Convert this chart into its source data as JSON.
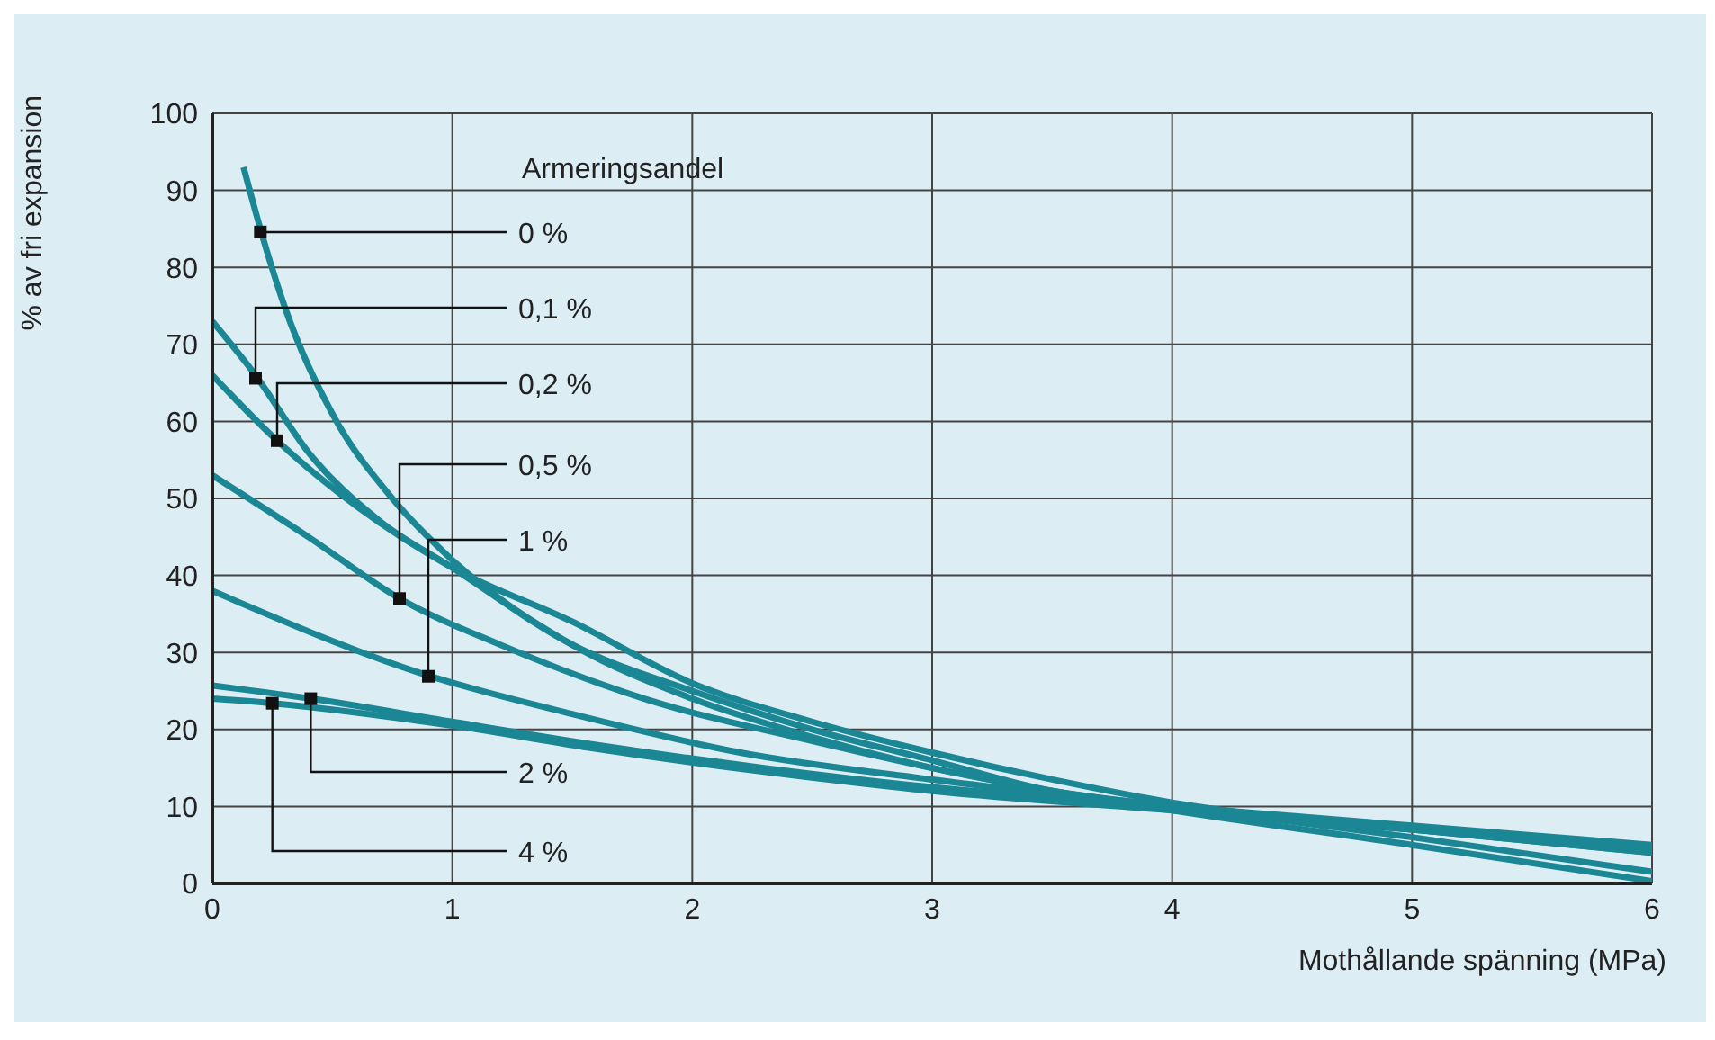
{
  "chart_data": {
    "type": "line",
    "xlabel": "Mothållande spänning (MPa)",
    "ylabel": "% av fri expansion",
    "legend_title": "Armeringsandel",
    "xlim": [
      0,
      6
    ],
    "xticks": [
      0,
      1,
      2,
      3,
      4,
      5,
      6
    ],
    "ylim": [
      0,
      100
    ],
    "yticks": [
      0,
      10,
      20,
      30,
      40,
      50,
      60,
      70,
      80,
      90,
      100
    ],
    "grid": true,
    "marker": "none",
    "line_style": "solid",
    "series": [
      {
        "color": "#1b8795",
        "x": [
          0.13,
          0.2,
          0.3,
          0.5,
          0.75,
          1,
          1.5,
          2,
          2.5,
          3,
          3.5,
          4,
          5,
          6
        ],
        "values": [
          93,
          85,
          75,
          61,
          50,
          42,
          31,
          24,
          19,
          15,
          12,
          9.5,
          5,
          0.3
        ]
      },
      {
        "color": "#1b8795",
        "x": [
          0,
          0.18,
          0.4,
          0.7,
          1,
          1.5,
          2,
          2.5,
          3,
          3.5,
          4,
          5,
          6
        ],
        "values": [
          73,
          66,
          56,
          47,
          41,
          31,
          25,
          20,
          16,
          12,
          10,
          6,
          1.5
        ]
      },
      {
        "color": "#1b8795",
        "x": [
          0,
          0.27,
          0.6,
          1,
          1.5,
          2,
          2.5,
          3,
          3.5,
          4,
          5,
          6
        ],
        "values": [
          66,
          57.5,
          49,
          41,
          34,
          26,
          21,
          17,
          13.5,
          10.5,
          7,
          4
        ]
      },
      {
        "color": "#1b8795",
        "x": [
          0,
          0.4,
          0.78,
          1.2,
          1.8,
          2.5,
          3,
          3.5,
          4,
          5,
          6
        ],
        "values": [
          53,
          45,
          37,
          31,
          24,
          18.5,
          15,
          12,
          10,
          7,
          4.5
        ]
      },
      {
        "color": "#1b8795",
        "x": [
          0,
          0.9,
          1.5,
          2.2,
          3,
          4,
          5,
          6
        ],
        "values": [
          38,
          27,
          22,
          17,
          13.5,
          10,
          7,
          4.5
        ]
      },
      {
        "color": "#1b8795",
        "x": [
          0,
          0.41,
          1,
          1.6,
          2.3,
          3,
          4,
          5,
          6
        ],
        "values": [
          25.7,
          24,
          21,
          18,
          15,
          12.5,
          10,
          7.5,
          5
        ]
      },
      {
        "color": "#1b8795",
        "x": [
          0,
          0.25,
          1,
          1.6,
          2.3,
          3,
          4,
          5,
          6
        ],
        "values": [
          24,
          23.4,
          20.5,
          17.5,
          14.5,
          12,
          9.5,
          7,
          4
        ]
      }
    ],
    "annotations": [
      {
        "text": "0 %",
        "x": 0.2,
        "y": 84.6
      },
      {
        "text": "0,1 %",
        "x": 0.18,
        "y": 65.6
      },
      {
        "text": "0,2 %",
        "x": 0.27,
        "y": 57.5
      },
      {
        "text": "0,5 %",
        "x": 0.78,
        "y": 37
      },
      {
        "text": "1 %",
        "x": 0.9,
        "y": 26.9
      },
      {
        "text": "2 %",
        "x": 0.41,
        "y": 24
      },
      {
        "text": "4 %",
        "x": 0.25,
        "y": 23.4
      }
    ]
  }
}
